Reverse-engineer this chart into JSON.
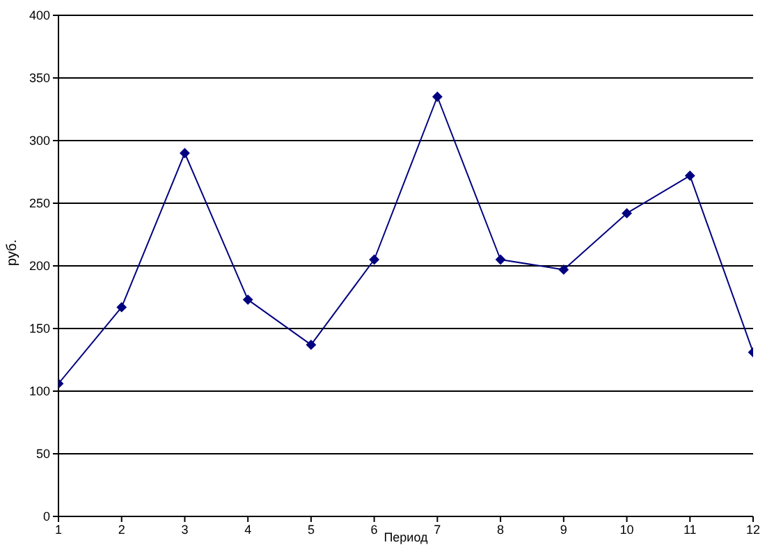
{
  "chart_data": {
    "type": "line",
    "xlabel": "Период",
    "ylabel": "руб.",
    "x": [
      1,
      2,
      3,
      4,
      5,
      6,
      7,
      8,
      9,
      10,
      11,
      12
    ],
    "series": [
      {
        "color": "#000080",
        "values": [
          106,
          167,
          290,
          173,
          137,
          205,
          335,
          205,
          197,
          242,
          272,
          131
        ]
      }
    ],
    "xlim": [
      1,
      12
    ],
    "xticks": [
      1,
      2,
      3,
      4,
      5,
      6,
      7,
      8,
      9,
      10,
      11,
      12
    ],
    "ylim": [
      0,
      400
    ],
    "yticks": [
      0,
      50,
      100,
      150,
      200,
      250,
      300,
      350,
      400
    ],
    "grid": "y",
    "legend": false,
    "marker": "diamond",
    "line_style": "solid"
  }
}
